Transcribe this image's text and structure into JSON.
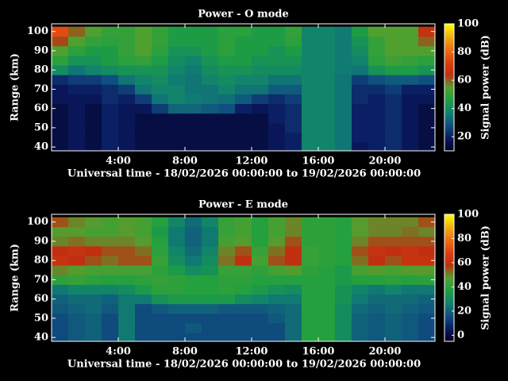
{
  "chart_data": [
    {
      "type": "heatmap",
      "title": "Power - O mode",
      "xlabel": "Universal time - 18/02/2026 00:00:00 to 19/02/2026 00:00:00",
      "ylabel": "Range (km)",
      "colorbar_label": "Signal power (dB)",
      "xlim": [
        0,
        23
      ],
      "ylim": [
        38,
        104
      ],
      "zlim": [
        10,
        100
      ],
      "xticks": [
        {
          "value": 4,
          "label": "4:00"
        },
        {
          "value": 8,
          "label": "8:00"
        },
        {
          "value": 12,
          "label": "12:00"
        },
        {
          "value": 16,
          "label": "16:00"
        },
        {
          "value": 20,
          "label": "20:00"
        }
      ],
      "yticks": [
        40,
        50,
        60,
        70,
        80,
        90,
        100
      ],
      "zticks": [
        20,
        40,
        60,
        80,
        100
      ],
      "colormap": [
        "#000020",
        "#0a1a60",
        "#105080",
        "#108070",
        "#20a040",
        "#50a030",
        "#c03010",
        "#e04010",
        "#f07010",
        "#f0b010",
        "#ffff00"
      ],
      "x": [
        0.5,
        1.5,
        2.5,
        3.5,
        4.5,
        5.5,
        6.5,
        7.5,
        8.5,
        9.5,
        10.5,
        11.5,
        12.5,
        13.5,
        14.5,
        15.5,
        16.5,
        17.5,
        18.5,
        19.5,
        20.5,
        21.5,
        22.5
      ],
      "y": [
        40,
        45,
        50,
        55,
        60,
        65,
        70,
        75,
        80,
        85,
        90,
        95,
        100
      ],
      "values": [
        [
          15,
          18,
          15,
          20,
          18,
          15,
          15,
          15,
          15,
          15,
          15,
          15,
          15,
          18,
          20,
          38,
          38,
          35,
          18,
          20,
          22,
          18,
          15
        ],
        [
          15,
          18,
          15,
          20,
          18,
          15,
          15,
          15,
          15,
          15,
          15,
          15,
          15,
          18,
          20,
          38,
          38,
          35,
          20,
          20,
          22,
          18,
          15
        ],
        [
          15,
          18,
          15,
          20,
          18,
          15,
          15,
          15,
          15,
          15,
          15,
          15,
          15,
          18,
          22,
          38,
          38,
          35,
          20,
          20,
          22,
          18,
          15
        ],
        [
          15,
          18,
          15,
          20,
          18,
          15,
          15,
          15,
          15,
          15,
          15,
          15,
          15,
          20,
          22,
          38,
          38,
          35,
          20,
          20,
          22,
          18,
          15
        ],
        [
          15,
          18,
          15,
          20,
          18,
          18,
          25,
          32,
          32,
          30,
          28,
          20,
          18,
          20,
          22,
          38,
          38,
          35,
          20,
          20,
          22,
          18,
          15
        ],
        [
          18,
          18,
          18,
          22,
          20,
          25,
          35,
          38,
          36,
          35,
          34,
          30,
          25,
          22,
          25,
          38,
          38,
          35,
          22,
          20,
          22,
          18,
          18
        ],
        [
          18,
          20,
          20,
          22,
          25,
          35,
          38,
          38,
          35,
          35,
          38,
          35,
          35,
          30,
          30,
          38,
          38,
          35,
          22,
          22,
          25,
          20,
          20
        ],
        [
          22,
          25,
          25,
          28,
          35,
          38,
          40,
          36,
          35,
          38,
          40,
          38,
          38,
          35,
          35,
          38,
          38,
          35,
          25,
          28,
          30,
          30,
          28
        ],
        [
          40,
          35,
          38,
          40,
          42,
          42,
          42,
          38,
          36,
          40,
          42,
          42,
          40,
          40,
          40,
          38,
          38,
          36,
          35,
          42,
          45,
          45,
          42
        ],
        [
          48,
          42,
          42,
          45,
          48,
          50,
          45,
          40,
          38,
          42,
          45,
          45,
          42,
          42,
          42,
          38,
          38,
          36,
          38,
          48,
          52,
          50,
          48
        ],
        [
          55,
          48,
          45,
          45,
          50,
          55,
          48,
          42,
          42,
          45,
          48,
          45,
          45,
          42,
          45,
          38,
          38,
          36,
          40,
          50,
          55,
          55,
          55
        ],
        [
          62,
          55,
          50,
          48,
          50,
          55,
          50,
          45,
          45,
          45,
          48,
          45,
          45,
          45,
          48,
          38,
          38,
          36,
          42,
          50,
          55,
          55,
          60
        ],
        [
          75,
          60,
          55,
          50,
          50,
          55,
          50,
          45,
          45,
          45,
          48,
          48,
          45,
          45,
          50,
          38,
          38,
          36,
          45,
          55,
          55,
          55,
          65
        ]
      ]
    },
    {
      "type": "heatmap",
      "title": "Power - E mode",
      "xlabel": "Universal time - 18/02/2026 00:00:00 to 19/02/2026 00:00:00",
      "ylabel": "Range (km)",
      "colorbar_label": "Signal power (dB)",
      "xlim": [
        0,
        23
      ],
      "ylim": [
        38,
        104
      ],
      "zlim": [
        -5,
        100
      ],
      "xticks": [
        {
          "value": 4,
          "label": "4:00"
        },
        {
          "value": 8,
          "label": "8:00"
        },
        {
          "value": 12,
          "label": "12:00"
        },
        {
          "value": 16,
          "label": "16:00"
        },
        {
          "value": 20,
          "label": "20:00"
        }
      ],
      "yticks": [
        40,
        50,
        60,
        70,
        80,
        90,
        100
      ],
      "zticks": [
        0,
        20,
        40,
        60,
        80,
        100
      ],
      "colormap": [
        "#000020",
        "#0a1a60",
        "#105080",
        "#108070",
        "#20a040",
        "#50a030",
        "#c03010",
        "#e04010",
        "#f07010",
        "#f0b010",
        "#ffff00"
      ],
      "x": [
        0.5,
        1.5,
        2.5,
        3.5,
        4.5,
        5.5,
        6.5,
        7.5,
        8.5,
        9.5,
        10.5,
        11.5,
        12.5,
        13.5,
        14.5,
        15.5,
        16.5,
        17.5,
        18.5,
        19.5,
        20.5,
        21.5,
        22.5
      ],
      "y": [
        40,
        45,
        50,
        55,
        60,
        65,
        70,
        75,
        80,
        85,
        90,
        95,
        100
      ],
      "values": [
        [
          15,
          18,
          20,
          15,
          25,
          15,
          15,
          15,
          15,
          15,
          15,
          15,
          15,
          15,
          22,
          38,
          38,
          30,
          20,
          18,
          20,
          18,
          15
        ],
        [
          15,
          18,
          20,
          15,
          25,
          15,
          15,
          15,
          18,
          15,
          15,
          15,
          15,
          15,
          22,
          38,
          38,
          30,
          20,
          18,
          20,
          18,
          15
        ],
        [
          15,
          18,
          20,
          15,
          25,
          15,
          15,
          15,
          15,
          15,
          15,
          15,
          15,
          18,
          22,
          38,
          38,
          30,
          20,
          18,
          20,
          18,
          15
        ],
        [
          18,
          20,
          22,
          18,
          25,
          15,
          18,
          20,
          20,
          20,
          18,
          18,
          18,
          20,
          22,
          38,
          38,
          30,
          22,
          20,
          22,
          20,
          18
        ],
        [
          20,
          22,
          22,
          20,
          25,
          25,
          32,
          35,
          35,
          35,
          35,
          30,
          28,
          25,
          25,
          38,
          38,
          32,
          25,
          22,
          22,
          22,
          20
        ],
        [
          25,
          28,
          28,
          28,
          30,
          35,
          40,
          40,
          38,
          38,
          40,
          38,
          35,
          32,
          30,
          38,
          38,
          32,
          28,
          25,
          28,
          25,
          25
        ],
        [
          40,
          42,
          40,
          38,
          38,
          40,
          42,
          40,
          38,
          38,
          40,
          40,
          38,
          38,
          38,
          38,
          38,
          35,
          38,
          38,
          40,
          38,
          40
        ],
        [
          50,
          48,
          45,
          45,
          45,
          45,
          40,
          35,
          30,
          32,
          42,
          42,
          40,
          45,
          48,
          40,
          38,
          35,
          45,
          48,
          45,
          48,
          48
        ],
        [
          60,
          58,
          55,
          52,
          55,
          55,
          42,
          30,
          25,
          30,
          52,
          58,
          45,
          55,
          58,
          42,
          40,
          38,
          52,
          58,
          55,
          60,
          60
        ],
        [
          58,
          60,
          58,
          55,
          55,
          52,
          40,
          28,
          22,
          28,
          50,
          55,
          42,
          52,
          58,
          42,
          40,
          38,
          55,
          60,
          58,
          60,
          58
        ],
        [
          50,
          52,
          50,
          50,
          50,
          48,
          38,
          25,
          20,
          25,
          45,
          48,
          38,
          48,
          55,
          40,
          40,
          38,
          50,
          55,
          55,
          55,
          55
        ],
        [
          48,
          48,
          45,
          45,
          48,
          45,
          35,
          25,
          20,
          25,
          42,
          45,
          38,
          45,
          50,
          40,
          40,
          38,
          48,
          50,
          50,
          52,
          50
        ],
        [
          55,
          50,
          48,
          45,
          48,
          45,
          38,
          28,
          22,
          28,
          42,
          45,
          38,
          45,
          50,
          40,
          40,
          38,
          48,
          50,
          50,
          50,
          55
        ]
      ]
    }
  ]
}
